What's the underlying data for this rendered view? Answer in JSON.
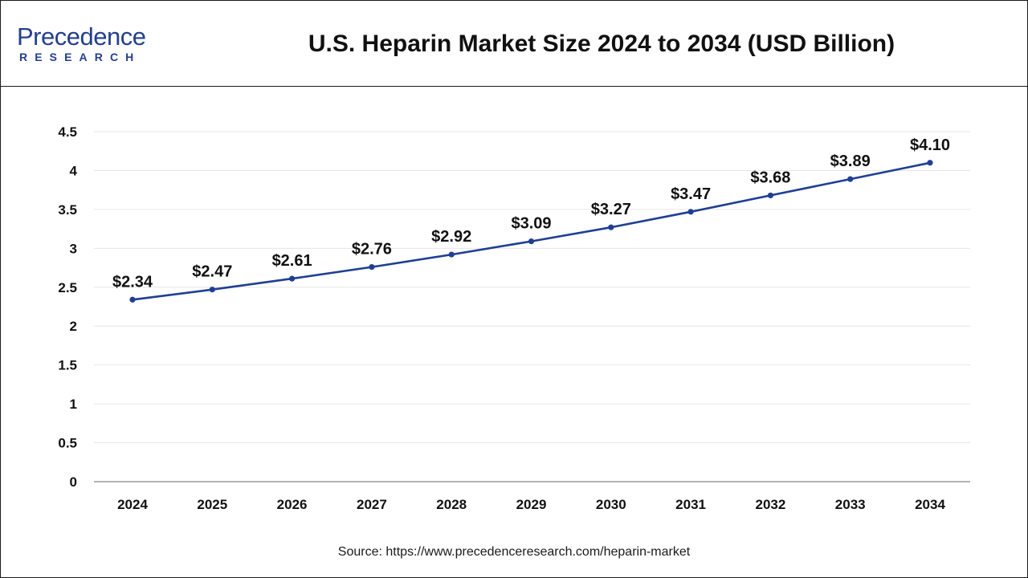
{
  "brand": {
    "name_main": "Precedence",
    "name_sub": "RESEARCH"
  },
  "title": "U.S. Heparin Market Size 2024 to 2034 (USD Billion)",
  "source": "Source: https://www.precedenceresearch.com/heparin-market",
  "colors": {
    "line": "#1f3f94",
    "grid": "#e6e6e6",
    "axis": "#9a9a9a",
    "brand": "#24408e"
  },
  "chart_data": {
    "type": "line",
    "title": "U.S. Heparin Market Size 2024 to 2034 (USD Billion)",
    "xlabel": "",
    "ylabel": "",
    "x": [
      "2024",
      "2025",
      "2026",
      "2027",
      "2028",
      "2029",
      "2030",
      "2031",
      "2032",
      "2033",
      "2034"
    ],
    "series": [
      {
        "values": [
          2.34,
          2.47,
          2.61,
          2.76,
          2.92,
          3.09,
          3.27,
          3.47,
          3.68,
          3.89,
          4.1
        ]
      }
    ],
    "data_labels": [
      "$2.34",
      "$2.47",
      "$2.61",
      "$2.76",
      "$2.92",
      "$3.09",
      "$3.27",
      "$3.47",
      "$3.68",
      "$3.89",
      "$4.10"
    ],
    "yticks": [
      "0",
      "0.5",
      "1",
      "1.5",
      "2",
      "2.5",
      "3",
      "3.5",
      "4",
      "4.5"
    ],
    "ylim": [
      0,
      4.5
    ],
    "grid": true,
    "legend": "none"
  }
}
